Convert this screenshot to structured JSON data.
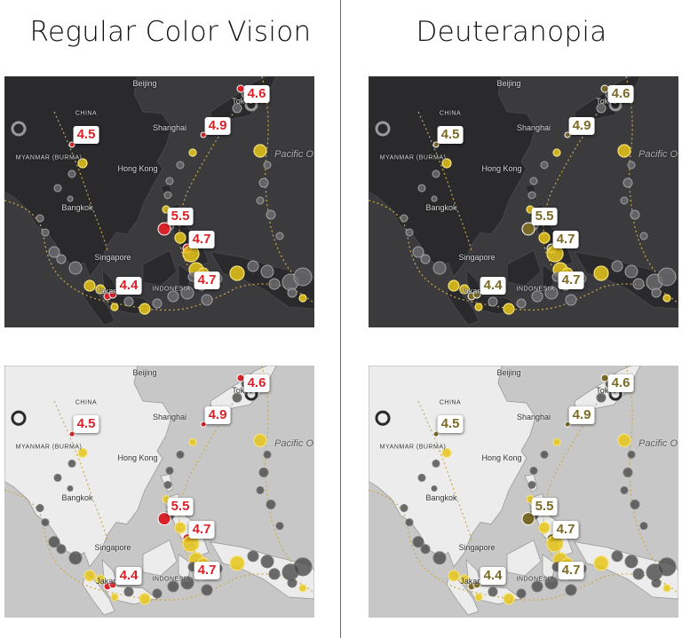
{
  "headings": {
    "left": "Regular Color Vision",
    "right": "Deuteranopia"
  },
  "colors": {
    "regular_marker": "#d8232a",
    "deuteranopia_marker": "#7a6a28",
    "yellow_marker": "#e6c619",
    "dark_basemap": "#2b2b2d",
    "light_basemap": "#bdbdbd"
  },
  "place_labels": {
    "beijing": "Beijing",
    "china": "CHINA",
    "shanghai": "Shanghai",
    "tokyo": "Tokyo",
    "hong_kong": "Hong Kong",
    "bangkok": "Bangkok",
    "singapore": "Singapore",
    "jakarta": "Jakarta",
    "indonesia": "INDONESIA",
    "myanmar": "MYANMAR (BURMA)",
    "pacific": "Pacific O"
  },
  "magnitudes": {
    "tokyo": "4.6",
    "shanghai": "4.9",
    "myanmar": "4.5",
    "philippines": "5.5",
    "mindanao_a": "4.7",
    "mindanao_b": "4.7",
    "java": "4.4"
  }
}
